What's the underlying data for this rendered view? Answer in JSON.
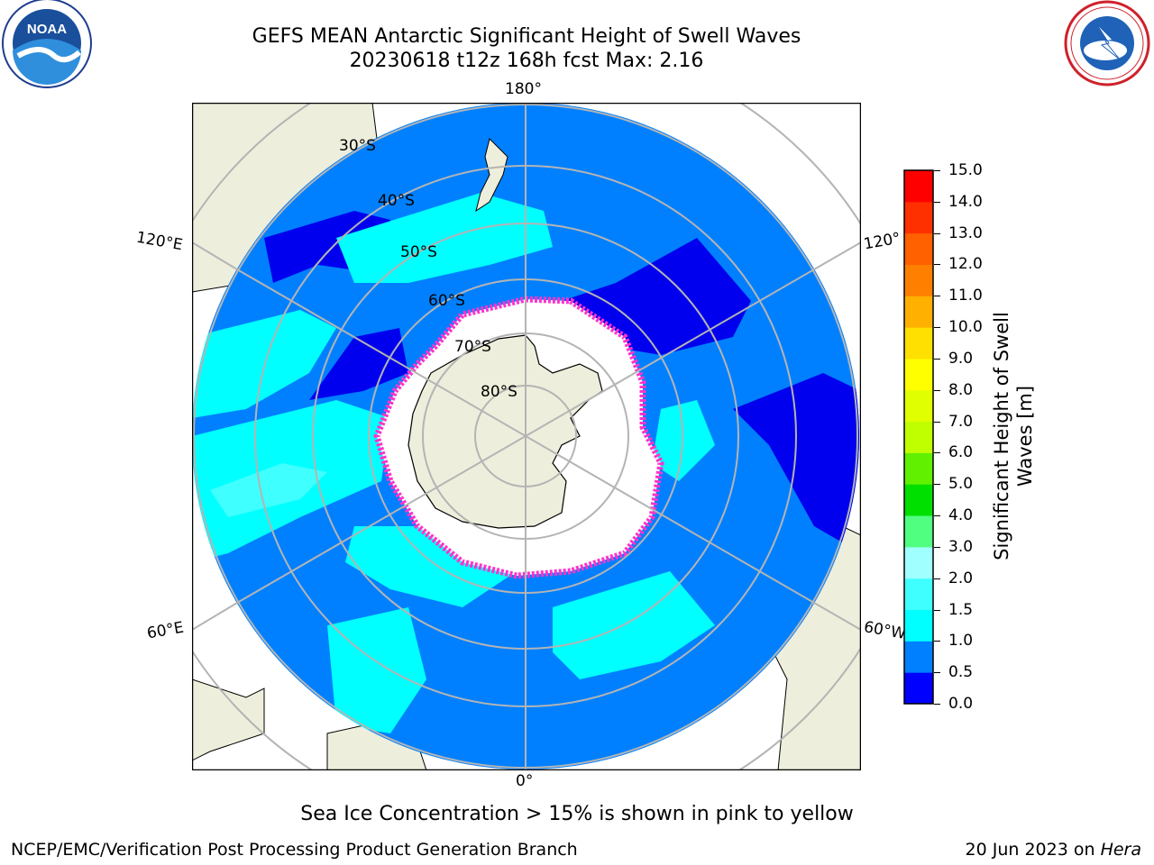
{
  "title": {
    "line1": "GEFS MEAN Antarctic Significant Height of Swell Waves",
    "line2": "20230618 t12z 168h fcst   Max: 2.16"
  },
  "logos": {
    "left": {
      "name": "noaa-logo",
      "text": "NOAA"
    },
    "right": {
      "name": "national-weather-service-logo"
    }
  },
  "map": {
    "projection": "south-polar-stereographic",
    "longitude_labels": {
      "top": "180°",
      "bottom": "0°",
      "left_upper": "120°E",
      "left_lower": "60°E",
      "right_upper": "120°",
      "right_lower": "60°W"
    },
    "latitude_labels": [
      "30°S",
      "40°S",
      "50°S",
      "60°S",
      "70°S",
      "80°S"
    ],
    "colors": {
      "land": "#eeeedc",
      "ice": "#ffffff",
      "ocean_0_0_5": "#0000ee",
      "ocean_0_5_1": "#0080ff",
      "ocean_1_1_5": "#00ffff",
      "ocean_1_5_2": "#40ffff",
      "ice_edge": "#ff33cc"
    }
  },
  "colorbar": {
    "label": "Significant Height of Swell Waves [m]",
    "ticks": [
      "0.0",
      "0.5",
      "1.0",
      "1.5",
      "2.0",
      "3.0",
      "4.0",
      "5.0",
      "6.0",
      "7.0",
      "8.0",
      "9.0",
      "10.0",
      "11.0",
      "12.0",
      "13.0",
      "14.0",
      "15.0"
    ],
    "colors": [
      "#0000ff",
      "#0080ff",
      "#00ffff",
      "#40ffff",
      "#a0ffff",
      "#50ff80",
      "#00e000",
      "#60f000",
      "#c0ff00",
      "#e0ff00",
      "#ffff00",
      "#ffe000",
      "#ffb000",
      "#ff8000",
      "#ff6000",
      "#ff3000",
      "#ff0000"
    ]
  },
  "caption": "Sea Ice Concentration > 15% is shown in pink to yellow",
  "footer": {
    "left": "NCEP/EMC/Verification Post Processing Product Generation Branch",
    "right_date": "20 Jun 2023 on ",
    "right_machine": "Hera"
  }
}
